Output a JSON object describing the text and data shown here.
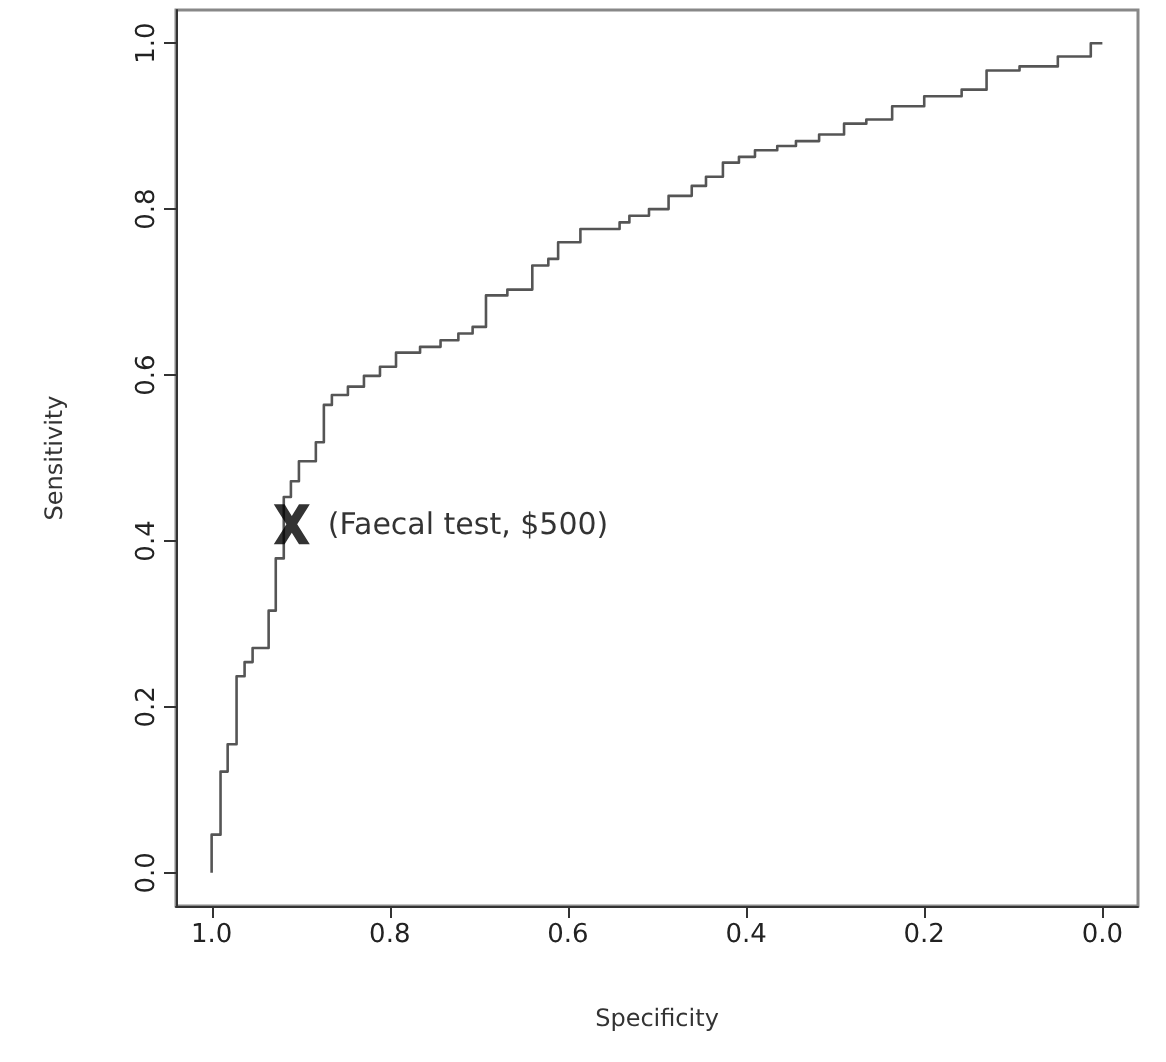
{
  "chart_data": {
    "type": "step",
    "xlabel": "Specificity",
    "ylabel": "Sensitivity",
    "xlim": [
      1.04,
      -0.04
    ],
    "ylim": [
      -0.04,
      1.04
    ],
    "xticks": [
      {
        "value": 1,
        "label": "1.0"
      },
      0.8,
      0.6,
      0.4,
      0.2,
      {
        "value": 0,
        "label": "0.0"
      }
    ],
    "yticks": [
      {
        "value": 0,
        "label": "0.0"
      },
      0.2,
      0.4,
      0.6,
      0.8,
      {
        "value": 1,
        "label": "1.0"
      }
    ],
    "grid": false,
    "series": [
      {
        "color": "#555555",
        "marker": "none",
        "x": [
          1,
          1,
          0.99,
          0.982,
          0.972,
          0.963,
          0.954,
          0.936,
          0.928,
          0.919,
          0.911,
          0.902,
          0.883,
          0.874,
          0.865,
          0.847,
          0.829,
          0.811,
          0.793,
          0.766,
          0.743,
          0.723,
          0.707,
          0.692,
          0.668,
          0.64,
          0.622,
          0.611,
          0.586,
          0.542,
          0.531,
          0.509,
          0.487,
          0.461,
          0.445,
          0.426,
          0.408,
          0.39,
          0.365,
          0.344,
          0.318,
          0.29,
          0.265,
          0.236,
          0.2,
          0.158,
          0.13,
          0.093,
          0.05,
          0.013,
          0.004,
          0
        ],
        "values": [
          0,
          0.046,
          0.122,
          0.155,
          0.237,
          0.254,
          0.271,
          0.316,
          0.379,
          0.453,
          0.472,
          0.496,
          0.519,
          0.564,
          0.576,
          0.586,
          0.599,
          0.61,
          0.627,
          0.634,
          0.642,
          0.65,
          0.658,
          0.696,
          0.703,
          0.732,
          0.74,
          0.76,
          0.776,
          0.784,
          0.792,
          0.8,
          0.816,
          0.828,
          0.839,
          0.856,
          0.863,
          0.871,
          0.876,
          0.882,
          0.89,
          0.903,
          0.908,
          0.924,
          0.936,
          0.944,
          0.967,
          0.972,
          0.984,
          1,
          1,
          1
        ]
      },
      {
        "type": "scatter",
        "color": "#000000",
        "marker": "cross",
        "x": [
          0.91
        ],
        "values": [
          0.42
        ]
      }
    ],
    "annotations": [
      {
        "text": "(Faecal test, $500)",
        "x": 0.91,
        "y": 0.42
      }
    ]
  }
}
